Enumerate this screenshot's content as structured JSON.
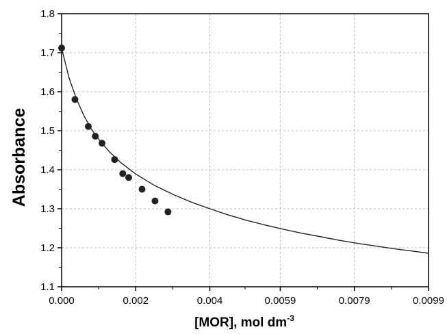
{
  "chart_data": {
    "type": "scatter",
    "xlabel": "[MOR], mol dm",
    "xlabel_superscript": "-3",
    "ylabel": "Absorbance",
    "xlim": [
      0,
      0.0099
    ],
    "ylim": [
      1.1,
      1.8
    ],
    "x_ticks": [
      0,
      0.002,
      0.004,
      0.0059,
      0.0079,
      0.0099
    ],
    "x_tick_labels": [
      "0.000",
      "0.002",
      "0.004",
      "0.0059",
      "0.0079",
      "0.0099"
    ],
    "y_ticks": [
      1.1,
      1.2,
      1.3,
      1.4,
      1.5,
      1.6,
      1.7,
      1.8
    ],
    "y_tick_labels": [
      "1.1",
      "1.2",
      "1.3",
      "1.4",
      "1.5",
      "1.6",
      "1.7",
      "1.8"
    ],
    "grid": true,
    "series": [
      {
        "type": "scatter",
        "x": [
          0,
          0.00036,
          0.00072,
          0.00091,
          0.00109,
          0.00143,
          0.00165,
          0.00181,
          0.00217,
          0.00252,
          0.00287
        ],
        "y": [
          1.712,
          1.58,
          1.511,
          1.486,
          1.468,
          1.426,
          1.39,
          1.38,
          1.35,
          1.32,
          1.292
        ],
        "color": "#222222"
      },
      {
        "type": "line",
        "x": [
          0,
          0.0002,
          0.0004,
          0.0006,
          0.0008,
          0.001,
          0.0013,
          0.0016,
          0.002,
          0.0025,
          0.003,
          0.0035,
          0.004,
          0.0045,
          0.005,
          0.0055,
          0.006,
          0.0065,
          0.007,
          0.0075,
          0.008,
          0.0085,
          0.009,
          0.0095,
          0.0099
        ],
        "y": [
          1.712,
          1.636,
          1.581,
          1.539,
          1.505,
          1.478,
          1.445,
          1.418,
          1.389,
          1.36,
          1.337,
          1.317,
          1.3,
          1.284,
          1.27,
          1.258,
          1.247,
          1.237,
          1.228,
          1.219,
          1.211,
          1.204,
          1.197,
          1.191,
          1.186
        ],
        "color": "#222222"
      }
    ]
  }
}
